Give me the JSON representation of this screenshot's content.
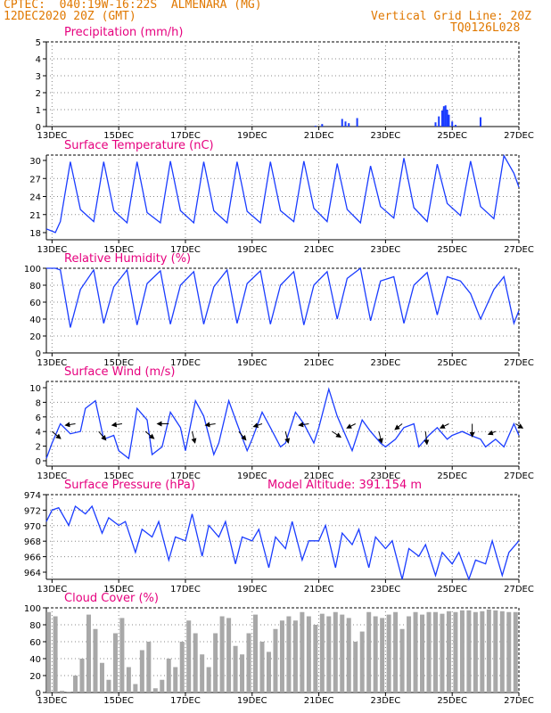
{
  "header": {
    "line1": "CPTEC:  040:19W-16:22S  ALMENARA (MG)",
    "line2": "12DEC2020 20Z (GMT)",
    "grid_label": "Vertical Grid Line: 20Z",
    "run_code": "TQ0126L028"
  },
  "x_ticks": [
    "13DEC",
    "15DEC",
    "17DEC",
    "19DEC",
    "21DEC",
    "23DEC",
    "25DEC",
    "27DEC"
  ],
  "colors": {
    "title": "#e6007e",
    "header": "#e07800",
    "line": "#1a3cff",
    "bars": "#1a3cff",
    "cloud": "#a8a8a8",
    "wind_arrow": "#000000"
  },
  "chart_data": [
    {
      "type": "bar",
      "title": "Precipitation (mm/h)",
      "ylim": [
        0,
        5
      ],
      "yticks": [
        "5",
        "4",
        "3",
        "2",
        "1",
        "0"
      ],
      "x_range": [
        12.83,
        27.0
      ],
      "x": [
        20.9,
        21.1,
        21.7,
        21.8,
        21.9,
        22.15,
        24.5,
        24.6,
        24.7,
        24.75,
        24.8,
        24.85,
        24.9,
        25.0,
        25.1,
        25.85
      ],
      "values": [
        0.05,
        0.15,
        0.45,
        0.3,
        0.2,
        0.5,
        0.25,
        0.6,
        0.95,
        1.2,
        1.25,
        1.0,
        0.7,
        0.3,
        0.1,
        0.55
      ]
    },
    {
      "type": "line",
      "title": "Surface Temperature (nC)",
      "ylim": [
        17,
        31
      ],
      "yticks": [
        "30",
        "27",
        "24",
        "21",
        "18"
      ],
      "x_range": [
        12.83,
        27.0
      ],
      "x": [
        12.83,
        13.1,
        13.25,
        13.55,
        13.85,
        14.25,
        14.55,
        14.85,
        15.25,
        15.55,
        15.85,
        16.25,
        16.55,
        16.85,
        17.25,
        17.55,
        17.85,
        18.25,
        18.55,
        18.85,
        19.25,
        19.55,
        19.85,
        20.25,
        20.55,
        20.85,
        21.25,
        21.55,
        21.85,
        22.25,
        22.55,
        22.85,
        23.25,
        23.55,
        23.85,
        24.25,
        24.55,
        24.85,
        25.25,
        25.55,
        25.85,
        26.25,
        26.55,
        26.85,
        27.0
      ],
      "values": [
        18.8,
        18.2,
        20.0,
        29.9,
        22.0,
        20.0,
        29.9,
        21.8,
        19.8,
        29.9,
        21.5,
        19.8,
        30.0,
        21.8,
        19.8,
        29.9,
        21.8,
        19.8,
        29.9,
        21.7,
        19.8,
        29.9,
        21.8,
        20.0,
        30.0,
        22.2,
        20.0,
        29.6,
        22.0,
        19.8,
        29.2,
        22.5,
        20.6,
        30.5,
        22.3,
        20.0,
        29.5,
        23.0,
        21.0,
        30.0,
        22.5,
        20.5,
        30.9,
        28.0,
        25.7
      ]
    },
    {
      "type": "line",
      "title": "Relative Humidity (%)",
      "ylim": [
        0,
        100
      ],
      "yticks": [
        "100",
        "80",
        "60",
        "40",
        "20",
        "0"
      ],
      "x_range": [
        12.83,
        27.0
      ],
      "x": [
        12.83,
        13.1,
        13.25,
        13.55,
        13.85,
        14.25,
        14.55,
        14.85,
        15.25,
        15.55,
        15.85,
        16.25,
        16.55,
        16.85,
        17.25,
        17.55,
        17.85,
        18.25,
        18.55,
        18.85,
        19.25,
        19.55,
        19.85,
        20.25,
        20.55,
        20.85,
        21.25,
        21.55,
        21.85,
        22.25,
        22.55,
        22.85,
        23.25,
        23.55,
        23.85,
        24.25,
        24.55,
        24.85,
        25.25,
        25.55,
        25.85,
        26.25,
        26.55,
        26.85,
        27.0
      ],
      "values": [
        100,
        100,
        98,
        30,
        75,
        98,
        35,
        78,
        98,
        33,
        82,
        97,
        34,
        80,
        96,
        34,
        78,
        98,
        35,
        82,
        97,
        34,
        80,
        96,
        33,
        80,
        96,
        40,
        88,
        100,
        38,
        85,
        90,
        35,
        80,
        95,
        45,
        90,
        85,
        70,
        40,
        75,
        90,
        35,
        50
      ]
    },
    {
      "type": "line",
      "title": "Surface Wind (m/s)",
      "ylim": [
        0,
        11
      ],
      "yticks": [
        "10",
        "8",
        "6",
        "4",
        "2",
        "0"
      ],
      "x_range": [
        12.83,
        27.0
      ],
      "x": [
        12.83,
        13.0,
        13.25,
        13.55,
        13.85,
        14.0,
        14.3,
        14.55,
        14.85,
        15.0,
        15.3,
        15.55,
        15.85,
        16.0,
        16.3,
        16.55,
        16.85,
        17.0,
        17.3,
        17.55,
        17.85,
        18.0,
        18.3,
        18.55,
        18.85,
        19.0,
        19.3,
        19.55,
        19.85,
        20.0,
        20.3,
        20.55,
        20.85,
        21.0,
        21.3,
        21.55,
        21.85,
        22.0,
        22.3,
        22.55,
        22.85,
        23.0,
        23.3,
        23.55,
        23.85,
        24.0,
        24.3,
        24.55,
        24.85,
        25.0,
        25.3,
        25.55,
        25.85,
        26.0,
        26.3,
        26.55,
        26.85,
        27.0
      ],
      "values": [
        1.0,
        3.0,
        5.5,
        4.2,
        4.5,
        7.5,
        8.5,
        3.5,
        4.0,
        2.0,
        1.0,
        7.5,
        6.0,
        1.5,
        2.5,
        7.0,
        5.0,
        2.0,
        8.5,
        6.5,
        1.5,
        3.0,
        8.5,
        5.5,
        2.0,
        3.5,
        7.0,
        5.0,
        2.5,
        3.0,
        7.0,
        5.5,
        3.0,
        5.0,
        10.0,
        6.5,
        3.5,
        2.0,
        6.0,
        4.5,
        3.0,
        2.5,
        3.5,
        5.0,
        5.5,
        2.5,
        4.0,
        5.0,
        3.5,
        4.0,
        4.5,
        4.0,
        3.5,
        2.5,
        3.5,
        2.5,
        5.5,
        4.0
      ],
      "wind_arrows": {
        "x": [
          13.0,
          13.7,
          14.4,
          15.1,
          15.8,
          16.5,
          17.2,
          17.9,
          18.6,
          19.3,
          20.0,
          20.7,
          21.4,
          22.1,
          22.8,
          23.5,
          24.2,
          24.9,
          25.6,
          26.3,
          26.9
        ],
        "y": [
          4.5,
          5.5,
          4.5,
          5.5,
          4.5,
          5.5,
          4.5,
          5.5,
          4.5,
          5.5,
          4.5,
          5.5,
          4.5,
          5.5,
          4.5,
          5.5,
          4.5,
          5.5,
          5.5,
          4.5,
          5.5
        ],
        "u": [
          0.6,
          -0.7,
          0.5,
          -0.7,
          0.6,
          -0.8,
          0.2,
          -0.7,
          0.5,
          -0.6,
          0.2,
          -0.7,
          0.6,
          -0.6,
          0.2,
          -0.5,
          0.1,
          -0.6,
          0.0,
          -0.5,
          0.5
        ],
        "v": [
          -0.5,
          -0.1,
          -0.6,
          -0.1,
          -0.5,
          0.0,
          -0.8,
          -0.1,
          -0.6,
          -0.2,
          -0.8,
          -0.1,
          -0.4,
          -0.3,
          -0.8,
          -0.4,
          -0.9,
          -0.3,
          -0.9,
          -0.2,
          -0.3
        ]
      }
    },
    {
      "type": "line",
      "title": "Surface Pressure (hPa)",
      "annotation": "Model Altitude: 391.154 m",
      "ylim": [
        963,
        974
      ],
      "yticks": [
        "974",
        "972",
        "970",
        "968",
        "966",
        "964"
      ],
      "x_range": [
        12.83,
        27.0
      ],
      "x": [
        12.83,
        13.0,
        13.2,
        13.5,
        13.7,
        14.0,
        14.2,
        14.5,
        14.7,
        15.0,
        15.2,
        15.5,
        15.7,
        16.0,
        16.2,
        16.5,
        16.7,
        17.0,
        17.2,
        17.5,
        17.7,
        18.0,
        18.2,
        18.5,
        18.7,
        19.0,
        19.2,
        19.5,
        19.7,
        20.0,
        20.2,
        20.5,
        20.7,
        21.0,
        21.2,
        21.5,
        21.7,
        22.0,
        22.2,
        22.5,
        22.7,
        23.0,
        23.2,
        23.5,
        23.7,
        24.0,
        24.2,
        24.5,
        24.7,
        25.0,
        25.2,
        25.5,
        25.7,
        26.0,
        26.2,
        26.5,
        26.7,
        27.0
      ],
      "values": [
        970.5,
        972.0,
        972.3,
        970.0,
        972.5,
        971.5,
        972.5,
        969.0,
        971.0,
        970.0,
        970.5,
        966.5,
        969.5,
        968.5,
        970.5,
        965.5,
        968.5,
        968.0,
        971.5,
        966.0,
        970.0,
        968.5,
        970.5,
        965.0,
        968.5,
        968.0,
        969.5,
        964.5,
        968.5,
        967.0,
        970.5,
        965.5,
        968.0,
        968.0,
        970.0,
        964.5,
        969.0,
        967.5,
        969.5,
        964.5,
        968.5,
        967.0,
        968.0,
        963.0,
        967.0,
        966.0,
        967.5,
        963.5,
        966.5,
        965.0,
        966.5,
        963.0,
        965.5,
        965.0,
        968.0,
        963.5,
        966.5,
        968.0
      ]
    },
    {
      "type": "bar",
      "title": "Cloud Cover (%)",
      "ylim": [
        0,
        100
      ],
      "yticks": [
        "100",
        "80",
        "60",
        "40",
        "20",
        "0"
      ],
      "x_range": [
        12.83,
        27.0
      ],
      "x": [
        12.9,
        13.1,
        13.3,
        13.5,
        13.7,
        13.9,
        14.1,
        14.3,
        14.5,
        14.7,
        14.9,
        15.1,
        15.3,
        15.5,
        15.7,
        15.9,
        16.1,
        16.3,
        16.5,
        16.7,
        16.9,
        17.1,
        17.3,
        17.5,
        17.7,
        17.9,
        18.1,
        18.3,
        18.5,
        18.7,
        18.9,
        19.1,
        19.3,
        19.5,
        19.7,
        19.9,
        20.1,
        20.3,
        20.5,
        20.7,
        20.9,
        21.1,
        21.3,
        21.5,
        21.7,
        21.9,
        22.1,
        22.3,
        22.5,
        22.7,
        22.9,
        23.1,
        23.3,
        23.5,
        23.7,
        23.9,
        24.1,
        24.3,
        24.5,
        24.7,
        24.9,
        25.1,
        25.3,
        25.5,
        25.7,
        25.9,
        26.1,
        26.3,
        26.5,
        26.7,
        26.9
      ],
      "values": [
        95,
        90,
        2,
        1,
        20,
        40,
        92,
        75,
        35,
        15,
        70,
        88,
        30,
        10,
        50,
        60,
        5,
        15,
        40,
        30,
        60,
        85,
        70,
        45,
        30,
        70,
        90,
        88,
        55,
        45,
        70,
        92,
        60,
        48,
        75,
        85,
        90,
        85,
        95,
        90,
        80,
        93,
        90,
        95,
        92,
        88,
        60,
        72,
        95,
        90,
        88,
        92,
        95,
        75,
        90,
        95,
        92,
        95,
        95,
        93,
        96,
        95,
        97,
        97,
        95,
        96,
        98,
        97,
        96,
        95,
        95
      ]
    }
  ]
}
